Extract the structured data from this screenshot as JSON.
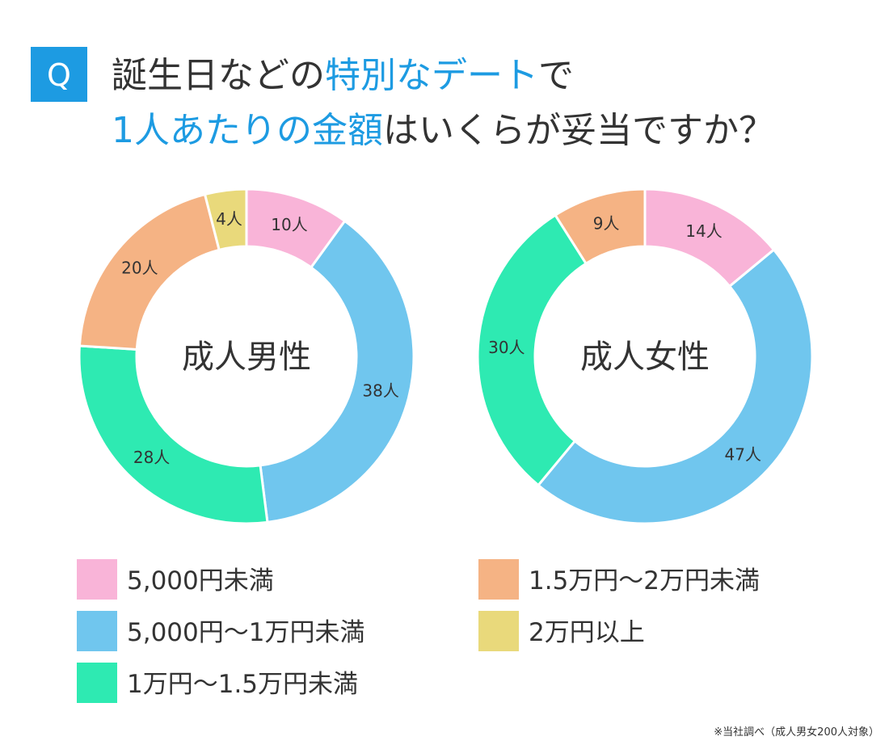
{
  "badge": "Q",
  "title_line1": [
    "誕生日などの",
    "特別なデート",
    "で"
  ],
  "title_line2": [
    "1人あたりの金額",
    "はいくらが妥当ですか？"
  ],
  "footnote": "※当社調べ（成人男女200人対象）",
  "chart_data": {
    "type": "donut",
    "categories": [
      "5,000円未満",
      "5,000円〜1万円未満",
      "1万円〜1.5万円未満",
      "1.5万円〜2万円未満",
      "2万円以上"
    ],
    "colors": [
      "#f9b4d8",
      "#70c6ee",
      "#2eeab2",
      "#f5b384",
      "#e9d97b"
    ],
    "series": [
      {
        "name": "成人男性",
        "values": [
          10,
          38,
          28,
          20,
          4
        ],
        "value_labels": [
          "10人",
          "38人",
          "28人",
          "20人",
          "4人"
        ]
      },
      {
        "name": "成人女性",
        "values": [
          14,
          47,
          30,
          9,
          0
        ],
        "value_labels": [
          "14人",
          "47人",
          "30人",
          "9人",
          null
        ]
      }
    ]
  }
}
